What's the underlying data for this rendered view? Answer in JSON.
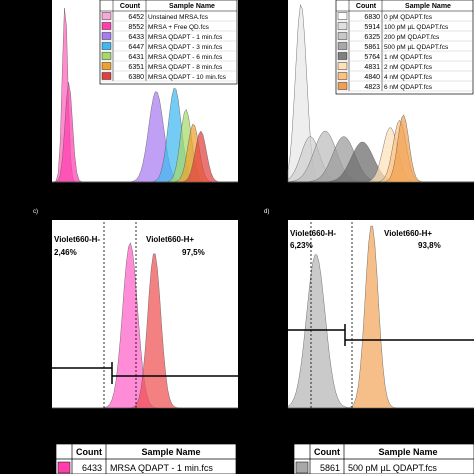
{
  "panels": {
    "c_label": "c)",
    "d_label": "d)"
  },
  "legend_a": {
    "headers": [
      "Count",
      "Sample Name"
    ],
    "rows": [
      {
        "count": "6452",
        "name": "Unstained MRSA.fcs",
        "color": "#f8a8d6"
      },
      {
        "count": "8552",
        "name": "MRSA + Free QD.fcs",
        "color": "#ff3fae"
      },
      {
        "count": "6433",
        "name": "MRSA QDAPT - 1 min.fcs",
        "color": "#a77cf0"
      },
      {
        "count": "6447",
        "name": "MRSA QDAPT - 3 min.fcs",
        "color": "#3fb8f0"
      },
      {
        "count": "6431",
        "name": "MRSA QDAPT - 6 min.fcs",
        "color": "#a6d96a"
      },
      {
        "count": "6351",
        "name": "MRSA QDAPT - 8 min.fcs",
        "color": "#f0a030"
      },
      {
        "count": "6380",
        "name": "MRSA QDAPT - 10 min.fcs",
        "color": "#e04040"
      }
    ]
  },
  "legend_b": {
    "headers": [
      "Count",
      "Sample Name"
    ],
    "rows": [
      {
        "count": "6830",
        "name": "0 pM QDAPT.fcs",
        "color": "#ffffff"
      },
      {
        "count": "5914",
        "name": "100 pM µL QDAPT.fcs",
        "color": "#e0e0e0"
      },
      {
        "count": "6325",
        "name": "200 pM QDAPT.fcs",
        "color": "#c8c8c8"
      },
      {
        "count": "5861",
        "name": "500 pM µL QDAPT.fcs",
        "color": "#a8a8a8"
      },
      {
        "count": "5764",
        "name": "1 nM QDAPT.fcs",
        "color": "#808080"
      },
      {
        "count": "4831",
        "name": "2 nM QDAPT.fcs",
        "color": "#ffe0b8"
      },
      {
        "count": "4840",
        "name": "4 nM QDAPT.fcs",
        "color": "#ffc080"
      },
      {
        "count": "4823",
        "name": "6 nM QDAPT.fcs",
        "color": "#f0a050"
      }
    ]
  },
  "gates_c": {
    "neg_label": "Violet660-H-",
    "neg_pct": "2,46%",
    "pos_label": "Violet660-H+",
    "pos_pct": "97,5%"
  },
  "gates_d": {
    "neg_label": "Violet660-H-",
    "neg_pct": "6,23%",
    "pos_label": "Violet660-H+",
    "pos_pct": "93,8%"
  },
  "legend_c": {
    "headers": [
      "Count",
      "Sample Name"
    ],
    "count": "6433",
    "name": "MRSA QDAPT - 1 min.fcs",
    "color": "#ff3fae"
  },
  "legend_d": {
    "headers": [
      "Count",
      "Sample Name"
    ],
    "count": "5861",
    "name": "500 pM µL QDAPT.fcs",
    "color": "#a8a8a8"
  },
  "chart_data": [
    {
      "type": "area",
      "panel": "a",
      "series": [
        {
          "name": "Unstained MRSA.fcs",
          "color": "#ff5fb8",
          "peak_x": 0.07,
          "width": 0.015,
          "height": 0.98
        },
        {
          "name": "MRSA + Free QD.fcs",
          "color": "#ff3fae",
          "peak_x": 0.09,
          "width": 0.02,
          "height": 0.55
        },
        {
          "name": "MRSA QDAPT - 1 min.fcs",
          "color": "#a77cf0",
          "peak_x": 0.56,
          "width": 0.04,
          "height": 0.5
        },
        {
          "name": "MRSA QDAPT - 3 min.fcs",
          "color": "#3fb8f0",
          "peak_x": 0.66,
          "width": 0.035,
          "height": 0.52
        },
        {
          "name": "MRSA QDAPT - 6 min.fcs",
          "color": "#a6d96a",
          "peak_x": 0.72,
          "width": 0.03,
          "height": 0.4
        },
        {
          "name": "MRSA QDAPT - 8 min.fcs",
          "color": "#f0a030",
          "peak_x": 0.76,
          "width": 0.03,
          "height": 0.32
        },
        {
          "name": "MRSA QDAPT - 10 min.fcs",
          "color": "#e04040",
          "peak_x": 0.8,
          "width": 0.03,
          "height": 0.28
        }
      ]
    },
    {
      "type": "area",
      "panel": "b",
      "series": [
        {
          "name": "0 pM QDAPT.fcs",
          "color": "#e8e8e8",
          "peak_x": 0.07,
          "width": 0.03,
          "height": 0.98
        },
        {
          "name": "100 pM µL QDAPT.fcs",
          "color": "#d0d0d0",
          "peak_x": 0.12,
          "width": 0.05,
          "height": 0.25
        },
        {
          "name": "200 pM QDAPT.fcs",
          "color": "#bdbdbd",
          "peak_x": 0.2,
          "width": 0.06,
          "height": 0.28
        },
        {
          "name": "500 pM µL QDAPT.fcs",
          "color": "#9a9a9a",
          "peak_x": 0.3,
          "width": 0.06,
          "height": 0.25
        },
        {
          "name": "1 nM QDAPT.fcs",
          "color": "#6a6a6a",
          "peak_x": 0.4,
          "width": 0.06,
          "height": 0.22
        },
        {
          "name": "2 nM QDAPT.fcs",
          "color": "#ffe0b8",
          "peak_x": 0.55,
          "width": 0.04,
          "height": 0.3
        },
        {
          "name": "4 nM QDAPT.fcs",
          "color": "#ffc080",
          "peak_x": 0.6,
          "width": 0.035,
          "height": 0.34
        },
        {
          "name": "6 nM QDAPT.fcs",
          "color": "#f0a050",
          "peak_x": 0.62,
          "width": 0.03,
          "height": 0.37
        }
      ]
    },
    {
      "type": "area",
      "panel": "c",
      "series": [
        {
          "name": "MRSA QDAPT - 1 min.fcs",
          "color": "#ff5fc8",
          "peak_x": 0.42,
          "width": 0.04,
          "height": 0.88
        },
        {
          "name": "MRSA QDAPT - 1 min.fcs",
          "color": "#f05050",
          "peak_x": 0.55,
          "width": 0.035,
          "height": 0.83
        }
      ]
    },
    {
      "type": "area",
      "panel": "d",
      "series": [
        {
          "name": "0 pM QDAPT.fcs",
          "color": "#b5b5b5",
          "peak_x": 0.15,
          "width": 0.05,
          "height": 0.82
        },
        {
          "name": "500 pM µL QDAPT.fcs",
          "color": "#f2a55a",
          "peak_x": 0.45,
          "width": 0.035,
          "height": 0.98
        }
      ]
    }
  ]
}
